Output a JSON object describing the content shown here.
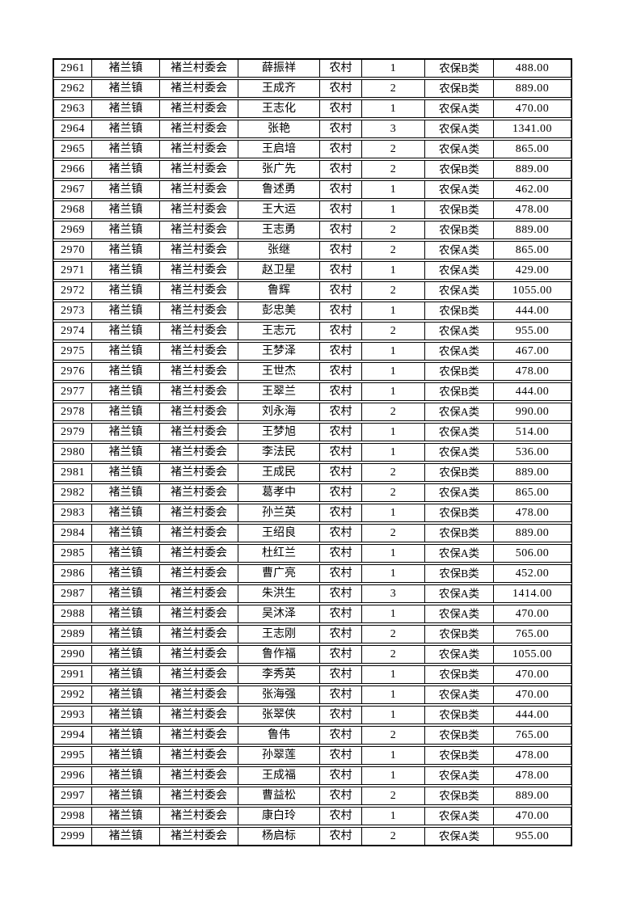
{
  "page": {
    "background_color": "#ffffff",
    "text_color": "#000000",
    "border_color": "#000000"
  },
  "table": {
    "rows": [
      [
        "2961",
        "褚兰镇",
        "褚兰村委会",
        "薛振祥",
        "农村",
        "1",
        "农保B类",
        "488.00"
      ],
      [
        "2962",
        "褚兰镇",
        "褚兰村委会",
        "王成齐",
        "农村",
        "2",
        "农保B类",
        "889.00"
      ],
      [
        "2963",
        "褚兰镇",
        "褚兰村委会",
        "王志化",
        "农村",
        "1",
        "农保A类",
        "470.00"
      ],
      [
        "2964",
        "褚兰镇",
        "褚兰村委会",
        "张艳",
        "农村",
        "3",
        "农保A类",
        "1341.00"
      ],
      [
        "2965",
        "褚兰镇",
        "褚兰村委会",
        "王启培",
        "农村",
        "2",
        "农保A类",
        "865.00"
      ],
      [
        "2966",
        "褚兰镇",
        "褚兰村委会",
        "张广先",
        "农村",
        "2",
        "农保B类",
        "889.00"
      ],
      [
        "2967",
        "褚兰镇",
        "褚兰村委会",
        "鲁述勇",
        "农村",
        "1",
        "农保A类",
        "462.00"
      ],
      [
        "2968",
        "褚兰镇",
        "褚兰村委会",
        "王大运",
        "农村",
        "1",
        "农保B类",
        "478.00"
      ],
      [
        "2969",
        "褚兰镇",
        "褚兰村委会",
        "王志勇",
        "农村",
        "2",
        "农保B类",
        "889.00"
      ],
      [
        "2970",
        "褚兰镇",
        "褚兰村委会",
        "张继",
        "农村",
        "2",
        "农保A类",
        "865.00"
      ],
      [
        "2971",
        "褚兰镇",
        "褚兰村委会",
        "赵卫星",
        "农村",
        "1",
        "农保A类",
        "429.00"
      ],
      [
        "2972",
        "褚兰镇",
        "褚兰村委会",
        "鲁辉",
        "农村",
        "2",
        "农保A类",
        "1055.00"
      ],
      [
        "2973",
        "褚兰镇",
        "褚兰村委会",
        "彭忠美",
        "农村",
        "1",
        "农保B类",
        "444.00"
      ],
      [
        "2974",
        "褚兰镇",
        "褚兰村委会",
        "王志元",
        "农村",
        "2",
        "农保A类",
        "955.00"
      ],
      [
        "2975",
        "褚兰镇",
        "褚兰村委会",
        "王梦泽",
        "农村",
        "1",
        "农保A类",
        "467.00"
      ],
      [
        "2976",
        "褚兰镇",
        "褚兰村委会",
        "王世杰",
        "农村",
        "1",
        "农保B类",
        "478.00"
      ],
      [
        "2977",
        "褚兰镇",
        "褚兰村委会",
        "王翠兰",
        "农村",
        "1",
        "农保B类",
        "444.00"
      ],
      [
        "2978",
        "褚兰镇",
        "褚兰村委会",
        "刘永海",
        "农村",
        "2",
        "农保A类",
        "990.00"
      ],
      [
        "2979",
        "褚兰镇",
        "褚兰村委会",
        "王梦旭",
        "农村",
        "1",
        "农保A类",
        "514.00"
      ],
      [
        "2980",
        "褚兰镇",
        "褚兰村委会",
        "李法民",
        "农村",
        "1",
        "农保A类",
        "536.00"
      ],
      [
        "2981",
        "褚兰镇",
        "褚兰村委会",
        "王成民",
        "农村",
        "2",
        "农保B类",
        "889.00"
      ],
      [
        "2982",
        "褚兰镇",
        "褚兰村委会",
        "葛孝中",
        "农村",
        "2",
        "农保A类",
        "865.00"
      ],
      [
        "2983",
        "褚兰镇",
        "褚兰村委会",
        "孙兰英",
        "农村",
        "1",
        "农保B类",
        "478.00"
      ],
      [
        "2984",
        "褚兰镇",
        "褚兰村委会",
        "王绍良",
        "农村",
        "2",
        "农保B类",
        "889.00"
      ],
      [
        "2985",
        "褚兰镇",
        "褚兰村委会",
        "杜红兰",
        "农村",
        "1",
        "农保A类",
        "506.00"
      ],
      [
        "2986",
        "褚兰镇",
        "褚兰村委会",
        "曹广亮",
        "农村",
        "1",
        "农保B类",
        "452.00"
      ],
      [
        "2987",
        "褚兰镇",
        "褚兰村委会",
        "朱洪生",
        "农村",
        "3",
        "农保A类",
        "1414.00"
      ],
      [
        "2988",
        "褚兰镇",
        "褚兰村委会",
        "吴沐泽",
        "农村",
        "1",
        "农保A类",
        "470.00"
      ],
      [
        "2989",
        "褚兰镇",
        "褚兰村委会",
        "王志刚",
        "农村",
        "2",
        "农保B类",
        "765.00"
      ],
      [
        "2990",
        "褚兰镇",
        "褚兰村委会",
        "鲁作福",
        "农村",
        "2",
        "农保A类",
        "1055.00"
      ],
      [
        "2991",
        "褚兰镇",
        "褚兰村委会",
        "李秀英",
        "农村",
        "1",
        "农保B类",
        "470.00"
      ],
      [
        "2992",
        "褚兰镇",
        "褚兰村委会",
        "张海强",
        "农村",
        "1",
        "农保A类",
        "470.00"
      ],
      [
        "2993",
        "褚兰镇",
        "褚兰村委会",
        "张翠侠",
        "农村",
        "1",
        "农保B类",
        "444.00"
      ],
      [
        "2994",
        "褚兰镇",
        "褚兰村委会",
        "鲁伟",
        "农村",
        "2",
        "农保B类",
        "765.00"
      ],
      [
        "2995",
        "褚兰镇",
        "褚兰村委会",
        "孙翠莲",
        "农村",
        "1",
        "农保B类",
        "478.00"
      ],
      [
        "2996",
        "褚兰镇",
        "褚兰村委会",
        "王成福",
        "农村",
        "1",
        "农保A类",
        "478.00"
      ],
      [
        "2997",
        "褚兰镇",
        "褚兰村委会",
        "曹益松",
        "农村",
        "2",
        "农保B类",
        "889.00"
      ],
      [
        "2998",
        "褚兰镇",
        "褚兰村委会",
        "康白玲",
        "农村",
        "1",
        "农保A类",
        "470.00"
      ],
      [
        "2999",
        "褚兰镇",
        "褚兰村委会",
        "杨启标",
        "农村",
        "2",
        "农保A类",
        "955.00"
      ]
    ]
  }
}
